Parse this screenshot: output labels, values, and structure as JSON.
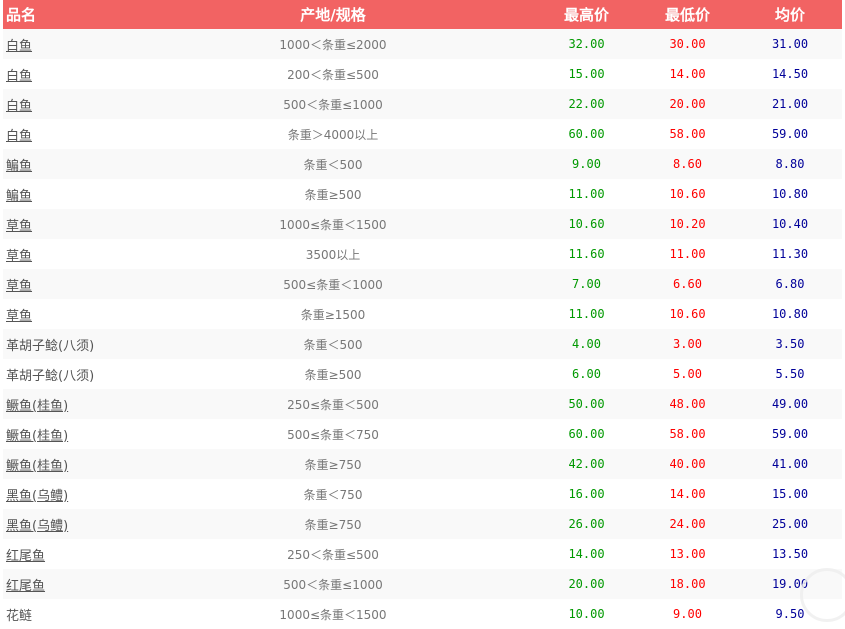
{
  "header": {
    "name": "品名",
    "spec": "产地/规格",
    "max": "最高价",
    "min": "最低价",
    "avg": "均价"
  },
  "colors": {
    "header_bg": "#f26363",
    "max": "#009900",
    "min": "#ff0000",
    "avg": "#000099"
  },
  "rows": [
    {
      "name": "白鱼",
      "spec": "1000＜条重≤2000",
      "max": "32.00",
      "min": "30.00",
      "avg": "31.00",
      "link": true
    },
    {
      "name": "白鱼",
      "spec": "200＜条重≤500",
      "max": "15.00",
      "min": "14.00",
      "avg": "14.50",
      "link": true
    },
    {
      "name": "白鱼",
      "spec": "500＜条重≤1000",
      "max": "22.00",
      "min": "20.00",
      "avg": "21.00",
      "link": true
    },
    {
      "name": "白鱼",
      "spec": "条重＞4000以上",
      "max": "60.00",
      "min": "58.00",
      "avg": "59.00",
      "link": true
    },
    {
      "name": "鳊鱼",
      "spec": "条重＜500",
      "max": "9.00",
      "min": "8.60",
      "avg": "8.80",
      "link": true
    },
    {
      "name": "鳊鱼",
      "spec": "条重≥500",
      "max": "11.00",
      "min": "10.60",
      "avg": "10.80",
      "link": true
    },
    {
      "name": "草鱼",
      "spec": "1000≤条重＜1500",
      "max": "10.60",
      "min": "10.20",
      "avg": "10.40",
      "link": true
    },
    {
      "name": "草鱼",
      "spec": "3500以上",
      "max": "11.60",
      "min": "11.00",
      "avg": "11.30",
      "link": true
    },
    {
      "name": "草鱼",
      "spec": "500≤条重＜1000",
      "max": "7.00",
      "min": "6.60",
      "avg": "6.80",
      "link": true
    },
    {
      "name": "草鱼",
      "spec": "条重≥1500",
      "max": "11.00",
      "min": "10.60",
      "avg": "10.80",
      "link": true
    },
    {
      "name": "革胡子鲶(八须)",
      "spec": "条重＜500",
      "max": "4.00",
      "min": "3.00",
      "avg": "3.50",
      "link": false
    },
    {
      "name": "革胡子鲶(八须)",
      "spec": "条重≥500",
      "max": "6.00",
      "min": "5.00",
      "avg": "5.50",
      "link": false
    },
    {
      "name": "鳜鱼(桂鱼)",
      "spec": "250≤条重＜500",
      "max": "50.00",
      "min": "48.00",
      "avg": "49.00",
      "link": true
    },
    {
      "name": "鳜鱼(桂鱼)",
      "spec": "500≤条重＜750",
      "max": "60.00",
      "min": "58.00",
      "avg": "59.00",
      "link": true
    },
    {
      "name": "鳜鱼(桂鱼)",
      "spec": "条重≥750",
      "max": "42.00",
      "min": "40.00",
      "avg": "41.00",
      "link": true
    },
    {
      "name": "黑鱼(乌鳢)",
      "spec": "条重＜750",
      "max": "16.00",
      "min": "14.00",
      "avg": "15.00",
      "link": true
    },
    {
      "name": "黑鱼(乌鳢)",
      "spec": "条重≥750",
      "max": "26.00",
      "min": "24.00",
      "avg": "25.00",
      "link": true
    },
    {
      "name": "红尾鱼",
      "spec": "250＜条重≤500",
      "max": "14.00",
      "min": "13.00",
      "avg": "13.50",
      "link": true
    },
    {
      "name": "红尾鱼",
      "spec": "500＜条重≤1000",
      "max": "20.00",
      "min": "18.00",
      "avg": "19.00",
      "link": true
    },
    {
      "name": "花鲢",
      "spec": "1000≤条重＜1500",
      "max": "10.00",
      "min": "9.00",
      "avg": "9.50",
      "link": false
    }
  ]
}
